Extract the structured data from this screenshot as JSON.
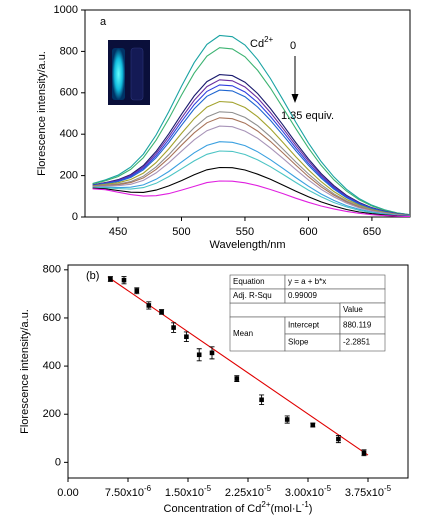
{
  "chart_data": [
    {
      "type": "line",
      "panel_label": "a",
      "xlabel": "Wavelength/nm",
      "ylabel": "Florescence intensity/a.u.",
      "cd_label": [
        "Cd",
        "2+"
      ],
      "start_label": "0",
      "end_label": "1.35 equiv.",
      "xlim": [
        424,
        680
      ],
      "xticks": [
        450,
        500,
        550,
        600,
        650
      ],
      "ylim": [
        0,
        1000
      ],
      "yticks": [
        0,
        200,
        400,
        600,
        800,
        1000
      ],
      "x": [
        430,
        440,
        450,
        460,
        470,
        480,
        490,
        500,
        510,
        520,
        530,
        540,
        550,
        560,
        570,
        580,
        590,
        600,
        610,
        620,
        630,
        640,
        650,
        660,
        670,
        680
      ],
      "series": [
        {
          "color": "#1aa3a3",
          "values": [
            162,
            179,
            202,
            241,
            304,
            396,
            509,
            632,
            746,
            834,
            877,
            871,
            831,
            760,
            669,
            566,
            459,
            358,
            268,
            194,
            134,
            89,
            57,
            35,
            20,
            11
          ]
        },
        {
          "color": "#3cb371",
          "values": [
            160,
            175,
            195,
            230,
            287,
            371,
            475,
            589,
            695,
            777,
            818,
            812,
            774,
            708,
            623,
            527,
            428,
            334,
            250,
            180,
            125,
            83,
            53,
            33,
            19,
            11
          ]
        },
        {
          "color": "#1a1a6e",
          "values": [
            155,
            166,
            180,
            205,
            249,
            317,
            402,
            496,
            585,
            654,
            688,
            683,
            651,
            596,
            524,
            444,
            360,
            281,
            210,
            152,
            105,
            70,
            45,
            28,
            16,
            9
          ]
        },
        {
          "color": "#6a2da0",
          "values": [
            154,
            165,
            177,
            201,
            242,
            307,
            388,
            478,
            564,
            630,
            663,
            658,
            628,
            575,
            505,
            428,
            347,
            271,
            203,
            146,
            101,
            67,
            43,
            27,
            15,
            9
          ]
        },
        {
          "color": "#2f3fe0",
          "values": [
            153,
            163,
            174,
            196,
            235,
            296,
            374,
            461,
            543,
            607,
            638,
            634,
            604,
            553,
            486,
            412,
            334,
            260,
            195,
            141,
            97,
            65,
            42,
            26,
            15,
            8
          ]
        },
        {
          "color": "#1f66d0",
          "values": [
            152,
            161,
            171,
            191,
            228,
            286,
            360,
            443,
            522,
            583,
            613,
            609,
            581,
            531,
            467,
            395,
            321,
            250,
            188,
            135,
            93,
            62,
            40,
            25,
            14,
            8
          ]
        },
        {
          "color": "#a3a32e",
          "values": [
            150,
            158,
            165,
            181,
            212,
            263,
            329,
            404,
            475,
            531,
            558,
            554,
            529,
            484,
            426,
            360,
            292,
            228,
            171,
            123,
            85,
            57,
            36,
            22,
            13,
            7
          ]
        },
        {
          "color": "#8f8f8f",
          "values": [
            148,
            154,
            159,
            171,
            197,
            242,
            301,
            368,
            432,
            483,
            508,
            505,
            481,
            441,
            388,
            328,
            266,
            208,
            156,
            112,
            78,
            52,
            33,
            20,
            12,
            7
          ]
        },
        {
          "color": "#a8745a",
          "values": [
            147,
            152,
            156,
            166,
            189,
            230,
            284,
            347,
            407,
            455,
            479,
            475,
            453,
            415,
            365,
            309,
            251,
            195,
            146,
            106,
            73,
            48,
            31,
            19,
            11,
            6
          ]
        },
        {
          "color": "#a894b8",
          "values": [
            146,
            149,
            151,
            158,
            177,
            213,
            262,
            318,
            373,
            417,
            439,
            436,
            415,
            380,
            334,
            283,
            230,
            179,
            134,
            97,
            67,
            44,
            29,
            18,
            10,
            6
          ]
        },
        {
          "color": "#3aa0e0",
          "values": [
            143,
            144,
            142,
            144,
            155,
            182,
            220,
            265,
            310,
            346,
            364,
            361,
            345,
            315,
            277,
            235,
            191,
            149,
            111,
            80,
            55,
            37,
            24,
            15,
            8,
            5
          ]
        },
        {
          "color": "#4cc4c4",
          "values": [
            142,
            141,
            137,
            135,
            142,
            163,
            195,
            233,
            271,
            303,
            319,
            317,
            302,
            276,
            243,
            206,
            167,
            130,
            98,
            70,
            49,
            32,
            21,
            13,
            7,
            4
          ]
        },
        {
          "color": "#000000",
          "values": [
            139,
            136,
            128,
            120,
            119,
            130,
            150,
            176,
            204,
            228,
            239,
            238,
            227,
            207,
            182,
            154,
            125,
            98,
            73,
            53,
            36,
            24,
            16,
            10,
            6,
            3
          ]
        },
        {
          "color": "#e020e0",
          "values": [
            136,
            132,
            120,
            108,
            101,
            103,
            113,
            130,
            148,
            166,
            174,
            173,
            165,
            151,
            133,
            113,
            91,
            71,
            53,
            39,
            27,
            18,
            11,
            7,
            4,
            2
          ]
        }
      ]
    },
    {
      "type": "scatter",
      "panel_label": "(b)",
      "ylabel": "Florescence intensity/a.u.",
      "xlabel": [
        "Concentration of Cd",
        "2+",
        "(mol·L",
        "-1",
        ")"
      ],
      "xlim": [
        0,
        4.25e-05
      ],
      "xticks": [
        {
          "value": 0,
          "label": "0.00"
        },
        {
          "value": 7.5e-06,
          "label": "7.50x10",
          "sup": "-6"
        },
        {
          "value": 1.5e-05,
          "label": "1.50x10",
          "sup": "-5"
        },
        {
          "value": 2.25e-05,
          "label": "2.25x10",
          "sup": "-5"
        },
        {
          "value": 3e-05,
          "label": "3.00x10",
          "sup": "-5"
        },
        {
          "value": 3.75e-05,
          "label": "3.75x10",
          "sup": "-5"
        }
      ],
      "ylim": [
        -65,
        820
      ],
      "yticks": [
        0,
        200,
        400,
        600,
        800
      ],
      "points": {
        "color": "#000000",
        "x": [
          5.3e-06,
          7e-06,
          8.6e-06,
          1.01e-05,
          1.17e-05,
          1.32e-05,
          1.48e-05,
          1.64e-05,
          1.8e-05,
          2.11e-05,
          2.42e-05,
          2.74e-05,
          3.06e-05,
          3.38e-05,
          3.7e-05
        ],
        "values": [
          762,
          757,
          713,
          652,
          625,
          560,
          522,
          447,
          455,
          348,
          260,
          178,
          155,
          97,
          40
        ],
        "errors": [
          10,
          15,
          12,
          15,
          10,
          20,
          20,
          25,
          25,
          12,
          20,
          15,
          8,
          15,
          12
        ]
      },
      "fit": {
        "color": "#e00000",
        "x": [
          5e-06,
          3.75e-05
        ],
        "values": [
          770,
          30
        ]
      },
      "table": {
        "rows": [
          [
            "Equation",
            "y = a + b*x"
          ],
          [
            "Adj. R-Squ",
            "0.99009"
          ],
          [
            "Value"
          ],
          [
            "Mean",
            "Intercept",
            "880.119"
          ],
          [
            "Slope",
            "-2.2851"
          ]
        ]
      }
    }
  ]
}
